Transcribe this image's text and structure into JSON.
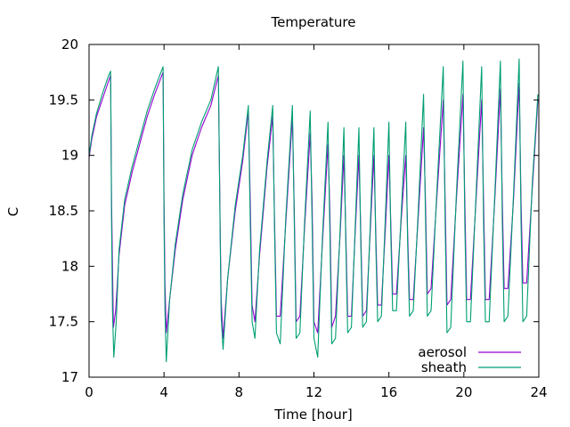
{
  "chart_data": {
    "type": "line",
    "title": "Temperature",
    "xlabel": "Time [hour]",
    "ylabel": "C",
    "xlim": [
      0,
      24
    ],
    "ylim": [
      17,
      20
    ],
    "xticks": [
      0,
      4,
      8,
      12,
      16,
      20,
      24
    ],
    "yticks": [
      17,
      17.5,
      18,
      18.5,
      19,
      19.5,
      20
    ],
    "ytick_labels": [
      "17",
      "17.5",
      "18",
      "18.5",
      "19",
      "19.5",
      "20"
    ],
    "grid": false,
    "legend_position": "bottom-right",
    "series": [
      {
        "name": "aerosol",
        "color": "#9400d3",
        "points": [
          [
            0,
            18.98
          ],
          [
            0.15,
            19.15
          ],
          [
            0.4,
            19.35
          ],
          [
            0.7,
            19.5
          ],
          [
            1.0,
            19.65
          ],
          [
            1.15,
            19.72
          ],
          [
            1.2,
            18.6
          ],
          [
            1.25,
            18.0
          ],
          [
            1.3,
            17.45
          ],
          [
            1.42,
            17.6
          ],
          [
            1.6,
            18.1
          ],
          [
            1.9,
            18.55
          ],
          [
            2.3,
            18.85
          ],
          [
            2.7,
            19.1
          ],
          [
            3.1,
            19.35
          ],
          [
            3.5,
            19.55
          ],
          [
            3.95,
            19.75
          ],
          [
            4.0,
            18.6
          ],
          [
            4.05,
            17.85
          ],
          [
            4.12,
            17.4
          ],
          [
            4.3,
            17.7
          ],
          [
            4.6,
            18.15
          ],
          [
            5.0,
            18.6
          ],
          [
            5.5,
            19.0
          ],
          [
            6.0,
            19.25
          ],
          [
            6.5,
            19.45
          ],
          [
            6.9,
            19.72
          ],
          [
            7.0,
            18.3
          ],
          [
            7.05,
            17.7
          ],
          [
            7.15,
            17.35
          ],
          [
            7.4,
            17.9
          ],
          [
            7.8,
            18.5
          ],
          [
            8.2,
            18.95
          ],
          [
            8.5,
            19.4
          ],
          [
            8.6,
            18.6
          ],
          [
            8.7,
            17.65
          ],
          [
            8.85,
            17.5
          ],
          [
            9.1,
            18.1
          ],
          [
            9.5,
            18.9
          ],
          [
            9.8,
            19.35
          ],
          [
            9.9,
            18.4
          ],
          [
            10.0,
            17.55
          ],
          [
            10.2,
            17.55
          ],
          [
            10.5,
            18.4
          ],
          [
            10.85,
            19.35
          ],
          [
            10.95,
            18.5
          ],
          [
            11.05,
            17.5
          ],
          [
            11.25,
            17.55
          ],
          [
            11.5,
            18.35
          ],
          [
            11.8,
            19.2
          ],
          [
            11.9,
            18.6
          ],
          [
            12.0,
            17.5
          ],
          [
            12.2,
            17.4
          ],
          [
            12.45,
            18.2
          ],
          [
            12.75,
            19.1
          ],
          [
            12.85,
            18.5
          ],
          [
            12.95,
            17.45
          ],
          [
            13.15,
            17.55
          ],
          [
            13.4,
            18.3
          ],
          [
            13.6,
            19.0
          ],
          [
            13.7,
            18.3
          ],
          [
            13.8,
            17.55
          ],
          [
            14.0,
            17.55
          ],
          [
            14.2,
            18.3
          ],
          [
            14.4,
            19.0
          ],
          [
            14.5,
            18.3
          ],
          [
            14.6,
            17.55
          ],
          [
            14.8,
            17.6
          ],
          [
            15.0,
            18.3
          ],
          [
            15.2,
            19.0
          ],
          [
            15.3,
            18.3
          ],
          [
            15.4,
            17.65
          ],
          [
            15.6,
            17.65
          ],
          [
            15.8,
            18.3
          ],
          [
            16.0,
            19.0
          ],
          [
            16.1,
            18.4
          ],
          [
            16.2,
            17.75
          ],
          [
            16.4,
            17.75
          ],
          [
            16.65,
            18.4
          ],
          [
            16.9,
            19.0
          ],
          [
            17.0,
            18.3
          ],
          [
            17.1,
            17.7
          ],
          [
            17.3,
            17.7
          ],
          [
            17.55,
            18.4
          ],
          [
            17.85,
            19.25
          ],
          [
            17.95,
            18.6
          ],
          [
            18.05,
            17.75
          ],
          [
            18.25,
            17.8
          ],
          [
            18.55,
            18.6
          ],
          [
            18.9,
            19.5
          ],
          [
            19.0,
            18.6
          ],
          [
            19.1,
            17.65
          ],
          [
            19.3,
            17.7
          ],
          [
            19.6,
            18.6
          ],
          [
            19.95,
            19.55
          ],
          [
            20.05,
            18.6
          ],
          [
            20.15,
            17.7
          ],
          [
            20.35,
            17.7
          ],
          [
            20.65,
            18.6
          ],
          [
            20.95,
            19.5
          ],
          [
            21.05,
            18.6
          ],
          [
            21.15,
            17.7
          ],
          [
            21.35,
            17.7
          ],
          [
            21.65,
            18.6
          ],
          [
            21.95,
            19.6
          ],
          [
            22.05,
            18.6
          ],
          [
            22.15,
            17.8
          ],
          [
            22.35,
            17.8
          ],
          [
            22.65,
            18.6
          ],
          [
            22.95,
            19.65
          ],
          [
            23.05,
            18.6
          ],
          [
            23.15,
            17.85
          ],
          [
            23.35,
            17.85
          ],
          [
            23.65,
            18.7
          ],
          [
            23.95,
            19.5
          ]
        ]
      },
      {
        "name": "sheath",
        "color": "#009e73",
        "points": [
          [
            0,
            19.0
          ],
          [
            0.15,
            19.18
          ],
          [
            0.4,
            19.38
          ],
          [
            0.7,
            19.55
          ],
          [
            1.0,
            19.7
          ],
          [
            1.15,
            19.76
          ],
          [
            1.2,
            18.4
          ],
          [
            1.25,
            17.6
          ],
          [
            1.32,
            17.18
          ],
          [
            1.45,
            17.5
          ],
          [
            1.6,
            18.15
          ],
          [
            1.9,
            18.6
          ],
          [
            2.3,
            18.9
          ],
          [
            2.7,
            19.15
          ],
          [
            3.1,
            19.4
          ],
          [
            3.5,
            19.6
          ],
          [
            3.95,
            19.8
          ],
          [
            4.0,
            18.4
          ],
          [
            4.05,
            17.6
          ],
          [
            4.12,
            17.14
          ],
          [
            4.3,
            17.7
          ],
          [
            4.6,
            18.2
          ],
          [
            5.0,
            18.65
          ],
          [
            5.5,
            19.05
          ],
          [
            6.0,
            19.3
          ],
          [
            6.5,
            19.5
          ],
          [
            6.9,
            19.8
          ],
          [
            7.0,
            18.2
          ],
          [
            7.05,
            17.55
          ],
          [
            7.15,
            17.25
          ],
          [
            7.4,
            17.9
          ],
          [
            7.8,
            18.55
          ],
          [
            8.2,
            19.0
          ],
          [
            8.5,
            19.45
          ],
          [
            8.6,
            18.4
          ],
          [
            8.7,
            17.5
          ],
          [
            8.85,
            17.35
          ],
          [
            9.1,
            18.15
          ],
          [
            9.5,
            18.95
          ],
          [
            9.8,
            19.45
          ],
          [
            9.9,
            18.3
          ],
          [
            10.0,
            17.4
          ],
          [
            10.2,
            17.3
          ],
          [
            10.5,
            18.45
          ],
          [
            10.85,
            19.45
          ],
          [
            10.95,
            18.4
          ],
          [
            11.05,
            17.35
          ],
          [
            11.25,
            17.4
          ],
          [
            11.5,
            18.4
          ],
          [
            11.8,
            19.4
          ],
          [
            11.9,
            18.4
          ],
          [
            12.0,
            17.35
          ],
          [
            12.2,
            17.18
          ],
          [
            12.45,
            18.25
          ],
          [
            12.75,
            19.3
          ],
          [
            12.85,
            18.3
          ],
          [
            12.95,
            17.3
          ],
          [
            13.15,
            17.35
          ],
          [
            13.4,
            18.35
          ],
          [
            13.6,
            19.25
          ],
          [
            13.7,
            18.2
          ],
          [
            13.8,
            17.4
          ],
          [
            14.0,
            17.45
          ],
          [
            14.2,
            18.35
          ],
          [
            14.4,
            19.25
          ],
          [
            14.5,
            18.2
          ],
          [
            14.6,
            17.45
          ],
          [
            14.8,
            17.5
          ],
          [
            15.0,
            18.35
          ],
          [
            15.2,
            19.25
          ],
          [
            15.3,
            18.2
          ],
          [
            15.4,
            17.5
          ],
          [
            15.6,
            17.55
          ],
          [
            15.8,
            18.4
          ],
          [
            16.0,
            19.3
          ],
          [
            16.1,
            18.3
          ],
          [
            16.2,
            17.6
          ],
          [
            16.4,
            17.6
          ],
          [
            16.65,
            18.45
          ],
          [
            16.9,
            19.3
          ],
          [
            17.0,
            18.2
          ],
          [
            17.1,
            17.55
          ],
          [
            17.3,
            17.6
          ],
          [
            17.55,
            18.45
          ],
          [
            17.85,
            19.55
          ],
          [
            17.95,
            18.45
          ],
          [
            18.05,
            17.55
          ],
          [
            18.25,
            17.6
          ],
          [
            18.55,
            18.65
          ],
          [
            18.9,
            19.8
          ],
          [
            19.0,
            18.4
          ],
          [
            19.1,
            17.4
          ],
          [
            19.3,
            17.45
          ],
          [
            19.6,
            18.65
          ],
          [
            19.95,
            19.85
          ],
          [
            20.05,
            18.4
          ],
          [
            20.15,
            17.5
          ],
          [
            20.35,
            17.5
          ],
          [
            20.65,
            18.65
          ],
          [
            20.95,
            19.8
          ],
          [
            21.05,
            18.4
          ],
          [
            21.15,
            17.5
          ],
          [
            21.35,
            17.5
          ],
          [
            21.65,
            18.65
          ],
          [
            21.95,
            19.85
          ],
          [
            22.05,
            18.4
          ],
          [
            22.15,
            17.5
          ],
          [
            22.35,
            17.55
          ],
          [
            22.65,
            18.65
          ],
          [
            22.95,
            19.87
          ],
          [
            23.05,
            18.4
          ],
          [
            23.15,
            17.5
          ],
          [
            23.35,
            17.55
          ],
          [
            23.65,
            18.75
          ],
          [
            23.95,
            19.55
          ]
        ]
      }
    ]
  }
}
